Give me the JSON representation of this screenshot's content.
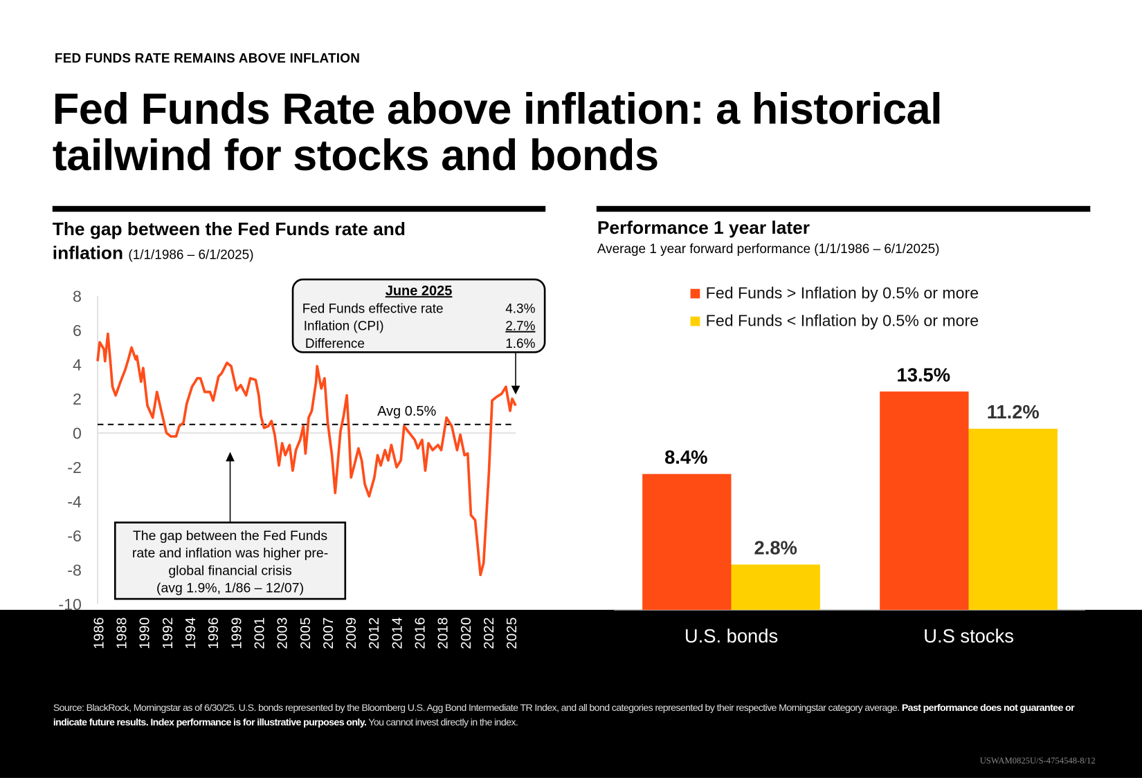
{
  "kicker": "FED FUNDS RATE REMAINS ABOVE INFLATION",
  "title_line1": "Fed Funds Rate above inflation: a historical",
  "title_line2": "tailwind for stocks and bonds",
  "colors": {
    "orange": "#FF4B14",
    "yellow": "#FFD000",
    "line": "#FF4D1A",
    "box_bg": "#F2F2F2"
  },
  "chart_data": [
    {
      "type": "line",
      "title": "The gap between the Fed Funds rate and inflation",
      "title_line1": "The gap between the Fed Funds rate and",
      "title_line2": "inflation",
      "period": "(1/1/1986 – 6/1/2025)",
      "ylim": [
        -10,
        8
      ],
      "yticks": [
        "8",
        "6",
        "4",
        "2",
        "0",
        "-2",
        "-4",
        "-6",
        "-8",
        "-10"
      ],
      "ytick_values": [
        8,
        6,
        4,
        2,
        0,
        -2,
        -4,
        -6,
        -8,
        -10
      ],
      "xticks": [
        "1986",
        "1988",
        "1990",
        "1992",
        "1994",
        "1996",
        "1999",
        "2001",
        "2003",
        "2005",
        "2007",
        "2009",
        "2012",
        "2014",
        "2016",
        "2018",
        "2020",
        "2022",
        "2025"
      ],
      "grid": false,
      "avg_line": {
        "value": 0.5,
        "label": "Avg 0.5%"
      },
      "series": [
        {
          "x": [
            1986.0,
            1986.2,
            1986.6,
            1986.7,
            1986.97,
            1987.2,
            1987.4,
            1987.7,
            1988.1,
            1988.6,
            1988.9,
            1989.2,
            1989.6,
            1989.7,
            1990.1,
            1990.3,
            1990.7,
            1991.2,
            1991.6,
            1992.0,
            1992.5,
            1992.9,
            1993.4,
            1993.7,
            1994.1,
            1994.4,
            1994.9,
            1995.4,
            1995.7,
            1996.1,
            1996.6,
            1996.9,
            1997.4,
            1997.7,
            1998.2,
            1998.6,
            1998.7,
            1999.1,
            1999.5,
            2000.0,
            2000.4,
            2000.9,
            2001.2,
            2001.4,
            2001.7,
            2002.1,
            2002.4,
            2002.7,
            2003.1,
            2003.4,
            2003.7,
            2004.1,
            2004.4,
            2004.7,
            2005.1,
            2005.4,
            2005.6,
            2005.9,
            2006.2,
            2006.6,
            2006.7,
            2007.1,
            2007.4,
            2007.7,
            2008.1,
            2008.4,
            2008.9,
            2009.2,
            2009.5,
            2009.7,
            2009.9,
            2010.2,
            2010.6,
            2010.9,
            2011.2,
            2011.6,
            2012.1,
            2012.4,
            2012.7,
            2013.1,
            2013.4,
            2013.7,
            2014.2,
            2014.6,
            2014.9,
            2015.4,
            2015.9,
            2016.2,
            2016.6,
            2016.9,
            2017.2,
            2017.6,
            2018.1,
            2018.4,
            2018.9,
            2019.4,
            2019.9,
            2020.2,
            2020.6,
            2020.9,
            2021.2,
            2021.6,
            2022.1,
            2022.4,
            2022.9,
            2023.2,
            2023.6,
            2024.1,
            2024.5,
            2024.9,
            2025.1,
            2025.42
          ],
          "y": [
            4.2,
            5.3,
            4.9,
            4.2,
            5.8,
            4.2,
            2.7,
            2.2,
            2.9,
            3.7,
            4.3,
            5.0,
            4.3,
            4.5,
            3.0,
            3.8,
            1.6,
            0.9,
            2.4,
            1.3,
            0.0,
            -0.2,
            -0.2,
            0.4,
            0.6,
            1.7,
            2.7,
            3.2,
            3.2,
            2.4,
            2.4,
            1.9,
            3.3,
            3.5,
            4.1,
            3.9,
            3.6,
            2.5,
            2.8,
            2.2,
            3.2,
            3.1,
            2.2,
            1.0,
            0.3,
            0.4,
            0.7,
            -0.1,
            -1.9,
            -0.6,
            -1.3,
            -0.7,
            -2.2,
            -1.0,
            -0.4,
            0.4,
            -1.2,
            0.9,
            1.3,
            3.0,
            3.9,
            2.6,
            3.2,
            0.6,
            -1.3,
            -3.5,
            0.1,
            1.0,
            2.2,
            0.1,
            -2.6,
            -1.9,
            -0.9,
            -1.6,
            -3.0,
            -3.7,
            -2.6,
            -1.3,
            -1.9,
            -1.0,
            -1.6,
            -0.7,
            -2.0,
            -1.6,
            0.4,
            0.0,
            -0.4,
            -0.9,
            -0.4,
            -2.2,
            -0.6,
            -1.0,
            -0.7,
            -1.0,
            0.9,
            0.4,
            -1.0,
            -0.1,
            -1.3,
            -1.2,
            -4.8,
            -5.1,
            -8.3,
            -7.6,
            -2.3,
            1.9,
            2.1,
            2.3,
            2.7,
            1.3,
            2.0,
            1.6
          ]
        }
      ],
      "callout_top": {
        "heading": "June 2025",
        "rows": [
          {
            "label": "Fed Funds effective rate",
            "value": "4.3%"
          },
          {
            "label": "Inflation (CPI)",
            "value": "2.7%"
          },
          {
            "label": "Difference",
            "value": "1.6%"
          }
        ]
      },
      "callout_bottom": {
        "lines": [
          "The gap between the Fed Funds",
          "rate and inflation was higher pre-",
          "global financial crisis",
          "(avg 1.9%, 1/86 – 12/07)"
        ]
      }
    },
    {
      "type": "bar",
      "title": "Performance 1 year later",
      "subtitle": "Average 1 year forward performance  (1/1/1986 – 6/1/2025)",
      "categories": [
        "U.S. bonds",
        "U.S stocks"
      ],
      "legend_position": "top",
      "series": [
        {
          "name": "Fed Funds > Inflation by 0.5% or more",
          "values": [
            8.4,
            13.5
          ],
          "labels": [
            "8.4%",
            "13.5%"
          ],
          "color": "#FF4B14"
        },
        {
          "name": "Fed Funds < Inflation by 0.5% or more",
          "values": [
            2.8,
            11.2
          ],
          "labels": [
            "2.8%",
            "11.2%"
          ],
          "color": "#FFD000"
        }
      ],
      "ylim": [
        0,
        13.5
      ]
    }
  ],
  "footnote": {
    "normal1": "Source: BlackRock, Morningstar as of 6/30/25. U.S. bonds represented by the Bloomberg U.S. Agg Bond Intermediate TR Index, and all bond categories represented by their respective Morningstar category average. ",
    "bold": "Past performance does not guarantee or indicate future results. Index performance is for illustrative purposes only.",
    "normal2": " You cannot invest directly in the index."
  },
  "code": "USWAM0825U/S-4754548-8/12"
}
